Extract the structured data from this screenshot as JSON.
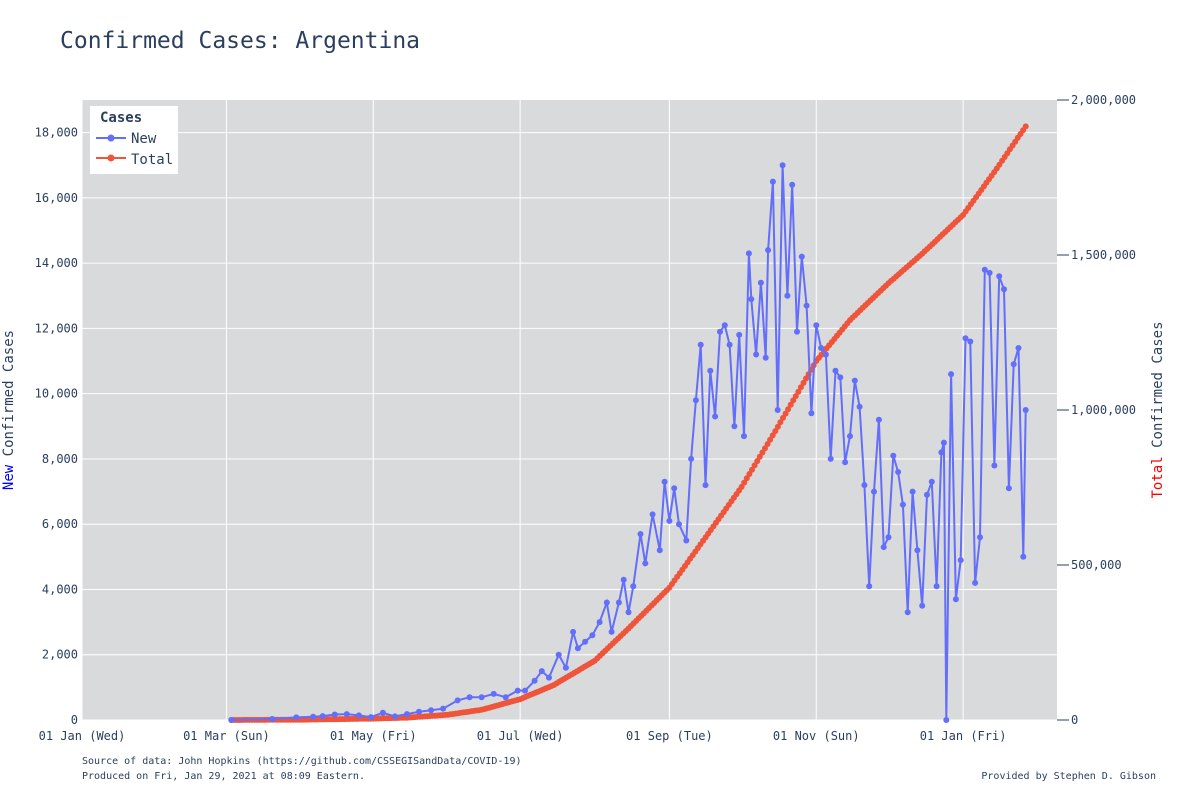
{
  "title": "Confirmed Cases: Argentina",
  "footer": {
    "source": "Source of data: John Hopkins (https://github.com/CSSEGISandData/COVID-19)",
    "produced": "Produced on Fri, Jan 29, 2021 at 08:09 Eastern.",
    "credit": "Provided by Stephen D. Gibson"
  },
  "chart_data": {
    "type": "line",
    "title": "Confirmed Cases: Argentina",
    "x_axis": {
      "type": "date",
      "range": [
        "2020-01-01",
        "2021-02-09"
      ],
      "ticks": [
        {
          "date": "2020-01-01",
          "label": "01 Jan (Wed)"
        },
        {
          "date": "2020-03-01",
          "label": "01 Mar (Sun)"
        },
        {
          "date": "2020-05-01",
          "label": "01 May (Fri)"
        },
        {
          "date": "2020-07-01",
          "label": "01 Jul (Wed)"
        },
        {
          "date": "2020-09-01",
          "label": "01 Sep (Tue)"
        },
        {
          "date": "2020-11-01",
          "label": "01 Nov (Sun)"
        },
        {
          "date": "2021-01-01",
          "label": "01 Jan (Fri)"
        }
      ]
    },
    "y_left": {
      "label_prefix": "New",
      "label_rest": " Confirmed Cases",
      "prefix_color": "#0000ff",
      "range": [
        0,
        19000
      ],
      "ticks": [
        0,
        2000,
        4000,
        6000,
        8000,
        10000,
        12000,
        14000,
        16000,
        18000
      ],
      "tick_labels": [
        "0",
        "2,000",
        "4,000",
        "6,000",
        "8,000",
        "10,000",
        "12,000",
        "14,000",
        "16,000",
        "18,000"
      ]
    },
    "y_right": {
      "label_prefix": "Total",
      "label_rest": " Confirmed Cases",
      "prefix_color": "#ff0000",
      "range": [
        0,
        2000000
      ],
      "ticks": [
        0,
        500000,
        1000000,
        1500000,
        2000000
      ],
      "tick_labels": [
        "0",
        "500,000",
        "1,000,000",
        "1,500,000",
        "2,000,000"
      ]
    },
    "grid": true,
    "plot_background": "#d9dadc",
    "legend": {
      "title": "Cases",
      "placement": "top-left",
      "items": [
        {
          "name": "New",
          "color": "#636efa"
        },
        {
          "name": "Total",
          "color": "#ef553b"
        }
      ]
    },
    "series": [
      {
        "name": "New",
        "axis": "left",
        "color": "#636efa",
        "x": [
          "2020-03-03",
          "2020-03-20",
          "2020-03-30",
          "2020-04-06",
          "2020-04-10",
          "2020-04-15",
          "2020-04-20",
          "2020-04-25",
          "2020-04-30",
          "2020-05-05",
          "2020-05-10",
          "2020-05-15",
          "2020-05-20",
          "2020-05-25",
          "2020-05-30",
          "2020-06-05",
          "2020-06-10",
          "2020-06-15",
          "2020-06-20",
          "2020-06-25",
          "2020-06-30",
          "2020-07-03",
          "2020-07-07",
          "2020-07-10",
          "2020-07-13",
          "2020-07-17",
          "2020-07-20",
          "2020-07-23",
          "2020-07-25",
          "2020-07-28",
          "2020-07-31",
          "2020-08-03",
          "2020-08-06",
          "2020-08-08",
          "2020-08-11",
          "2020-08-13",
          "2020-08-15",
          "2020-08-17",
          "2020-08-20",
          "2020-08-22",
          "2020-08-25",
          "2020-08-28",
          "2020-08-30",
          "2020-09-01",
          "2020-09-03",
          "2020-09-05",
          "2020-09-08",
          "2020-09-10",
          "2020-09-12",
          "2020-09-14",
          "2020-09-16",
          "2020-09-18",
          "2020-09-20",
          "2020-09-22",
          "2020-09-24",
          "2020-09-26",
          "2020-09-28",
          "2020-09-30",
          "2020-10-02",
          "2020-10-04",
          "2020-10-05",
          "2020-10-07",
          "2020-10-09",
          "2020-10-11",
          "2020-10-12",
          "2020-10-14",
          "2020-10-16",
          "2020-10-18",
          "2020-10-20",
          "2020-10-22",
          "2020-10-24",
          "2020-10-26",
          "2020-10-28",
          "2020-10-30",
          "2020-11-01",
          "2020-11-03",
          "2020-11-05",
          "2020-11-07",
          "2020-11-09",
          "2020-11-11",
          "2020-11-13",
          "2020-11-15",
          "2020-11-17",
          "2020-11-19",
          "2020-11-21",
          "2020-11-23",
          "2020-11-25",
          "2020-11-27",
          "2020-11-29",
          "2020-12-01",
          "2020-12-03",
          "2020-12-05",
          "2020-12-07",
          "2020-12-09",
          "2020-12-11",
          "2020-12-13",
          "2020-12-15",
          "2020-12-17",
          "2020-12-19",
          "2020-12-21",
          "2020-12-23",
          "2020-12-24",
          "2020-12-25",
          "2020-12-27",
          "2020-12-29",
          "2020-12-31",
          "2021-01-02",
          "2021-01-04",
          "2021-01-06",
          "2021-01-08",
          "2021-01-10",
          "2021-01-12",
          "2021-01-14",
          "2021-01-16",
          "2021-01-18",
          "2021-01-20",
          "2021-01-22",
          "2021-01-24",
          "2021-01-26",
          "2021-01-27"
        ],
        "values": [
          0,
          30,
          80,
          100,
          120,
          170,
          180,
          140,
          90,
          220,
          110,
          180,
          250,
          300,
          350,
          600,
          700,
          700,
          800,
          700,
          900,
          900,
          1200,
          1500,
          1300,
          2000,
          1600,
          2700,
          2200,
          2400,
          2600,
          3000,
          3600,
          2700,
          3600,
          4300,
          3300,
          4100,
          5700,
          4800,
          6300,
          5200,
          7300,
          6100,
          7100,
          6000,
          5500,
          8000,
          9800,
          11500,
          7200,
          10700,
          9300,
          11900,
          12100,
          11500,
          9000,
          11800,
          8700,
          14300,
          12900,
          11200,
          13400,
          11100,
          14400,
          16500,
          9500,
          17000,
          13000,
          16400,
          11900,
          14200,
          12700,
          9400,
          12100,
          11400,
          11200,
          8000,
          10700,
          10500,
          7900,
          8700,
          10400,
          9600,
          7200,
          4100,
          7000,
          9200,
          5300,
          5600,
          8100,
          7600,
          6600,
          3300,
          7000,
          5200,
          3500,
          6900,
          7300,
          4100,
          8200,
          8500,
          0,
          10600,
          3700,
          4900,
          11700,
          11600,
          4200,
          5600,
          13800,
          13700,
          7800,
          13600,
          13200,
          7100,
          10900,
          11400,
          5000,
          9500
        ]
      },
      {
        "name": "Total",
        "axis": "right",
        "color": "#ef553b",
        "x": [
          "2020-03-03",
          "2020-04-01",
          "2020-05-01",
          "2020-05-15",
          "2020-06-01",
          "2020-06-15",
          "2020-07-01",
          "2020-07-15",
          "2020-08-01",
          "2020-08-15",
          "2020-09-01",
          "2020-09-15",
          "2020-10-01",
          "2020-10-15",
          "2020-11-01",
          "2020-11-15",
          "2020-12-01",
          "2020-12-15",
          "2021-01-01",
          "2021-01-15",
          "2021-01-27"
        ],
        "values": [
          0,
          1000,
          4400,
          7500,
          17000,
          33000,
          67000,
          113000,
          191000,
          295000,
          427000,
          578000,
          752000,
          932000,
          1158000,
          1290000,
          1409000,
          1504000,
          1629000,
          1779000,
          1915000
        ]
      }
    ]
  }
}
